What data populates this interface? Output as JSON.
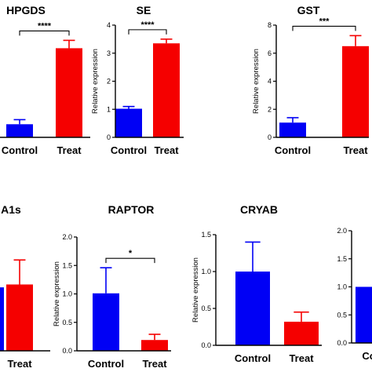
{
  "colors": {
    "control": "#0000f5",
    "treat": "#f50000",
    "axis": "#000000"
  },
  "chart_data": [
    {
      "type": "bar",
      "title": "HPGDS",
      "ylabel": "",
      "categories": [
        "Control",
        "Treat"
      ],
      "values": [
        1.0,
        6.8
      ],
      "errors": [
        0.35,
        0.6
      ],
      "ylim": [
        0,
        10
      ],
      "yticks": [],
      "significance": "****"
    },
    {
      "type": "bar",
      "title": "SE",
      "ylabel": "Relative expression",
      "categories": [
        "Control",
        "Treat"
      ],
      "values": [
        1.02,
        3.35
      ],
      "errors": [
        0.08,
        0.15
      ],
      "ylim": [
        0,
        4
      ],
      "yticks": [
        "0",
        "1",
        "2",
        "3",
        "4"
      ],
      "significance": "****"
    },
    {
      "type": "bar",
      "title": "GST",
      "ylabel": "Relative expression",
      "categories": [
        "Control",
        "Treat"
      ],
      "values": [
        1.05,
        6.5
      ],
      "errors": [
        0.35,
        0.75
      ],
      "ylim": [
        0,
        8
      ],
      "yticks": [
        "0",
        "2",
        "4",
        "6",
        "8"
      ],
      "significance": "***"
    },
    {
      "type": "bar",
      "title": "A1s",
      "ylabel": "",
      "categories": [
        "",
        "Treat"
      ],
      "values": [
        0.88,
        0.92
      ],
      "errors": [
        0,
        0.34
      ],
      "ylim": [
        0,
        1.6
      ],
      "yticks": [],
      "significance": ""
    },
    {
      "type": "bar",
      "title": "RAPTOR",
      "ylabel": "Relative expression",
      "categories": [
        "Control",
        "Treat"
      ],
      "values": [
        1.01,
        0.19
      ],
      "errors": [
        0.45,
        0.1
      ],
      "ylim": [
        0,
        2.0
      ],
      "yticks": [
        "0.0",
        "0.5",
        "1.0",
        "1.5",
        "2.0"
      ],
      "significance": "*"
    },
    {
      "type": "bar",
      "title": "CRYAB",
      "ylabel": "Relative expression",
      "categories": [
        "Control",
        "Treat"
      ],
      "values": [
        1.0,
        0.32
      ],
      "errors": [
        0.4,
        0.13
      ],
      "ylim": [
        0,
        1.5
      ],
      "yticks": [
        "0.0",
        "0.5",
        "1.0",
        "1.5"
      ],
      "significance": ""
    },
    {
      "type": "bar",
      "title": "",
      "ylabel": "",
      "categories": [
        "Co",
        ""
      ],
      "values": [
        1.0,
        0
      ],
      "errors": [
        0,
        0
      ],
      "ylim": [
        0,
        2.0
      ],
      "yticks": [
        "0.0",
        "0.5",
        "1.0",
        "1.5",
        "2.0"
      ],
      "significance": ""
    }
  ]
}
